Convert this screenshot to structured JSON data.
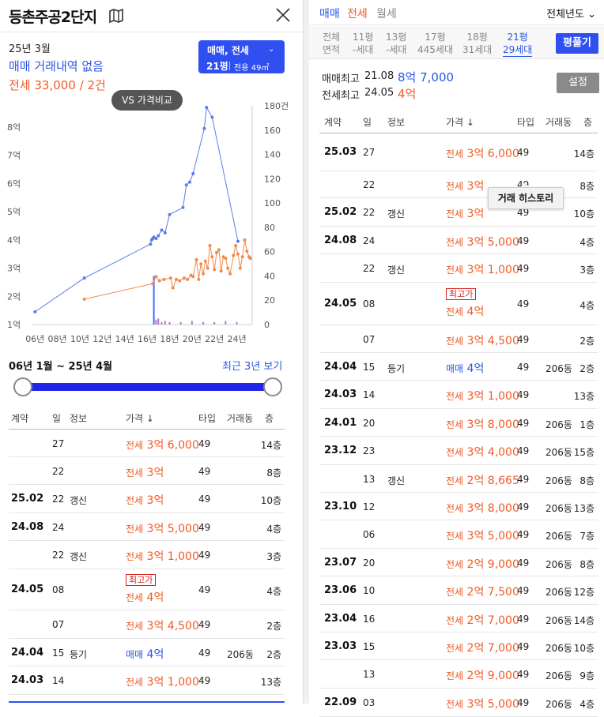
{
  "left": {
    "title": "등촌주공2단지",
    "date": "25년 3월",
    "sale_none": "매매 거래내역 없음",
    "rent_summary": "전세 33,000 / 2건",
    "selector": {
      "type": "매매, 전세",
      "size": "21평",
      "area": "전용 49㎡"
    },
    "vs_button": "VS 가격비교",
    "range_text": "06년 1월 ~ 25년 4월",
    "recent_link": "최근 3년 보기"
  },
  "chart_data": {
    "type": "line",
    "x_tick_labels": [
      "06년",
      "08년",
      "10년",
      "12년",
      "14년",
      "16년",
      "18년",
      "20년",
      "22년",
      "24년"
    ],
    "y_left_tick_labels": [
      "1억",
      "2억",
      "3억",
      "4억",
      "5억",
      "6억",
      "7억",
      "8억"
    ],
    "y_right_tick_labels": [
      "0",
      "20",
      "40",
      "60",
      "80",
      "100",
      "120",
      "140",
      "160",
      "180건"
    ],
    "ylim_left": [
      1,
      8.7
    ],
    "ylim_right": [
      0,
      180
    ],
    "xlim": [
      2005.7,
      2025.3
    ],
    "series": [
      {
        "color": "#5b7bea",
        "points": [
          [
            2006.0,
            1.45
          ],
          [
            2010.4,
            2.65
          ],
          [
            2016.3,
            3.85
          ],
          [
            2016.4,
            4.0
          ],
          [
            2016.5,
            4.05
          ],
          [
            2016.6,
            4.1
          ],
          [
            2016.8,
            4.05
          ],
          [
            2017.0,
            4.15
          ],
          [
            2017.3,
            4.35
          ],
          [
            2017.6,
            4.25
          ],
          [
            2018.0,
            4.9
          ],
          [
            2019.2,
            5.15
          ],
          [
            2019.5,
            5.95
          ],
          [
            2019.8,
            6.05
          ],
          [
            2020.1,
            6.35
          ],
          [
            2021.1,
            7.95
          ],
          [
            2021.3,
            8.7
          ],
          [
            2021.8,
            8.35
          ],
          [
            2024.1,
            3.95
          ]
        ]
      },
      {
        "color": "#f28a4b",
        "points": [
          [
            2010.4,
            1.9
          ],
          [
            2016.5,
            2.45
          ],
          [
            2016.8,
            2.7
          ],
          [
            2017.1,
            2.55
          ],
          [
            2017.5,
            2.6
          ],
          [
            2018.1,
            2.65
          ],
          [
            2018.3,
            2.3
          ],
          [
            2018.6,
            2.6
          ],
          [
            2018.9,
            2.55
          ],
          [
            2019.3,
            2.65
          ],
          [
            2019.6,
            2.6
          ],
          [
            2019.9,
            2.75
          ],
          [
            2020.1,
            2.7
          ],
          [
            2020.4,
            3.3
          ],
          [
            2020.6,
            2.6
          ],
          [
            2020.8,
            3.15
          ],
          [
            2021.0,
            2.8
          ],
          [
            2021.2,
            3.25
          ],
          [
            2021.4,
            3.0
          ],
          [
            2021.6,
            3.8
          ],
          [
            2021.8,
            3.4
          ],
          [
            2022.0,
            2.95
          ],
          [
            2022.2,
            3.55
          ],
          [
            2022.4,
            3.65
          ],
          [
            2022.6,
            2.9
          ],
          [
            2022.8,
            3.4
          ],
          [
            2023.0,
            3.35
          ],
          [
            2023.2,
            3.0
          ],
          [
            2023.4,
            2.8
          ],
          [
            2023.7,
            3.45
          ],
          [
            2023.9,
            3.8
          ],
          [
            2024.1,
            3.5
          ],
          [
            2024.3,
            3.0
          ],
          [
            2024.5,
            3.4
          ],
          [
            2024.7,
            4.0
          ],
          [
            2024.9,
            3.6
          ],
          [
            2025.1,
            3.4
          ],
          [
            2025.2,
            3.35
          ]
        ]
      }
    ],
    "volume": [
      {
        "x": 2016.6,
        "count": 40
      },
      {
        "x": 2016.8,
        "count": 4
      },
      {
        "x": 2017.0,
        "count": 5
      },
      {
        "x": 2017.3,
        "count": 2
      },
      {
        "x": 2017.6,
        "count": 3
      },
      {
        "x": 2018.0,
        "count": 2
      },
      {
        "x": 2019.0,
        "count": 2
      },
      {
        "x": 2020.0,
        "count": 3
      },
      {
        "x": 2021.0,
        "count": 2
      },
      {
        "x": 2022.0,
        "count": 2
      },
      {
        "x": 2023.0,
        "count": 3
      },
      {
        "x": 2024.0,
        "count": 2
      }
    ]
  },
  "left_table": {
    "headers": [
      "계약",
      "일",
      "정보",
      "가격 ↓",
      "타입",
      "거래동",
      "층"
    ],
    "rows": [
      {
        "ym": "",
        "day": "27",
        "info": "",
        "kind": "전세",
        "price": "3억 6,000",
        "type": "49",
        "dong": "",
        "floor": "14층",
        "sale": false,
        "badge": ""
      },
      {
        "ym": "",
        "day": "22",
        "info": "",
        "kind": "전세",
        "price": "3억",
        "type": "49",
        "dong": "",
        "floor": "8층",
        "sale": false,
        "badge": ""
      },
      {
        "ym": "25.02",
        "day": "22",
        "info": "갱신",
        "kind": "전세",
        "price": "3억",
        "type": "49",
        "dong": "",
        "floor": "10층",
        "sale": false,
        "badge": ""
      },
      {
        "ym": "24.08",
        "day": "24",
        "info": "",
        "kind": "전세",
        "price": "3억 5,000",
        "type": "49",
        "dong": "",
        "floor": "4층",
        "sale": false,
        "badge": ""
      },
      {
        "ym": "",
        "day": "22",
        "info": "갱신",
        "kind": "전세",
        "price": "3억 1,000",
        "type": "49",
        "dong": "",
        "floor": "3층",
        "sale": false,
        "badge": ""
      },
      {
        "ym": "24.05",
        "day": "08",
        "info": "",
        "kind": "전세",
        "price": "4억",
        "type": "49",
        "dong": "",
        "floor": "4층",
        "sale": false,
        "badge": "최고가"
      },
      {
        "ym": "",
        "day": "07",
        "info": "",
        "kind": "전세",
        "price": "3억 4,500",
        "type": "49",
        "dong": "",
        "floor": "2층",
        "sale": false,
        "badge": ""
      },
      {
        "ym": "24.04",
        "day": "15",
        "info": "등기",
        "kind": "매매",
        "price": "4억",
        "type": "49",
        "dong": "206동",
        "floor": "2층",
        "sale": true,
        "badge": ""
      },
      {
        "ym": "24.03",
        "day": "14",
        "info": "",
        "kind": "전세",
        "price": "3억 1,000",
        "type": "49",
        "dong": "",
        "floor": "13층",
        "sale": false,
        "badge": ""
      }
    ]
  },
  "right": {
    "tabs": [
      {
        "label": "매매",
        "color": "#2b55e6"
      },
      {
        "label": "전세",
        "color": "#ef5b26"
      },
      {
        "label": "월세",
        "color": "#888888"
      }
    ],
    "year_select": "전체년도",
    "areas": [
      {
        "l1": "전체",
        "l2": "면적",
        "active": false
      },
      {
        "l1": "11평",
        "l2": "-세대",
        "active": false
      },
      {
        "l1": "13평",
        "l2": "-세대",
        "active": false
      },
      {
        "l1": "17평",
        "l2": "445세대",
        "active": false
      },
      {
        "l1": "18평",
        "l2": "31세대",
        "active": false
      },
      {
        "l1": "21평",
        "l2": "29세대",
        "active": true
      }
    ],
    "pyeong_button": "평풀기",
    "sale_max_label": "매매최고",
    "sale_max_date": "21.08",
    "sale_max_price": "8억 7,000",
    "rent_max_label": "전세최고",
    "rent_max_date": "24.05",
    "rent_max_price": "4억",
    "settings_button": "설정",
    "tooltip": "거래 히스토리"
  },
  "right_table": {
    "headers": [
      "계약",
      "일",
      "정보",
      "가격 ↓",
      "타입",
      "거래동",
      "층"
    ],
    "rows": [
      {
        "ym": "25.03",
        "day": "27",
        "info": "",
        "kind": "전세",
        "price": "3억 6,000",
        "type": "49",
        "dong": "",
        "floor": "14층",
        "sale": false,
        "badge": ""
      },
      {
        "ym": "",
        "day": "22",
        "info": "",
        "kind": "전세",
        "price": "3억",
        "type": "49",
        "dong": "",
        "floor": "8층",
        "sale": false,
        "badge": ""
      },
      {
        "ym": "25.02",
        "day": "22",
        "info": "갱신",
        "kind": "전세",
        "price": "3억",
        "type": "49",
        "dong": "",
        "floor": "10층",
        "sale": false,
        "badge": ""
      },
      {
        "ym": "24.08",
        "day": "24",
        "info": "",
        "kind": "전세",
        "price": "3억 5,000",
        "type": "49",
        "dong": "",
        "floor": "4층",
        "sale": false,
        "badge": ""
      },
      {
        "ym": "",
        "day": "22",
        "info": "갱신",
        "kind": "전세",
        "price": "3억 1,000",
        "type": "49",
        "dong": "",
        "floor": "3층",
        "sale": false,
        "badge": ""
      },
      {
        "ym": "24.05",
        "day": "08",
        "info": "",
        "kind": "전세",
        "price": "4억",
        "type": "49",
        "dong": "",
        "floor": "4층",
        "sale": false,
        "badge": "최고가"
      },
      {
        "ym": "",
        "day": "07",
        "info": "",
        "kind": "전세",
        "price": "3억 4,500",
        "type": "49",
        "dong": "",
        "floor": "2층",
        "sale": false,
        "badge": ""
      },
      {
        "ym": "24.04",
        "day": "15",
        "info": "등기",
        "kind": "매매",
        "price": "4억",
        "type": "49",
        "dong": "206동",
        "floor": "2층",
        "sale": true,
        "badge": ""
      },
      {
        "ym": "24.03",
        "day": "14",
        "info": "",
        "kind": "전세",
        "price": "3억 1,000",
        "type": "49",
        "dong": "",
        "floor": "13층",
        "sale": false,
        "badge": ""
      },
      {
        "ym": "24.01",
        "day": "20",
        "info": "",
        "kind": "전세",
        "price": "3억 8,000",
        "type": "49",
        "dong": "206동",
        "floor": "1층",
        "sale": false,
        "badge": ""
      },
      {
        "ym": "23.12",
        "day": "23",
        "info": "",
        "kind": "전세",
        "price": "3억 4,000",
        "type": "49",
        "dong": "206동",
        "floor": "15층",
        "sale": false,
        "badge": ""
      },
      {
        "ym": "",
        "day": "13",
        "info": "갱신",
        "kind": "전세",
        "price": "2억 8,665",
        "type": "49",
        "dong": "206동",
        "floor": "8층",
        "sale": false,
        "badge": ""
      },
      {
        "ym": "23.10",
        "day": "12",
        "info": "",
        "kind": "전세",
        "price": "3억 8,000",
        "type": "49",
        "dong": "206동",
        "floor": "13층",
        "sale": false,
        "badge": ""
      },
      {
        "ym": "",
        "day": "06",
        "info": "",
        "kind": "전세",
        "price": "3억 5,000",
        "type": "49",
        "dong": "206동",
        "floor": "7층",
        "sale": false,
        "badge": ""
      },
      {
        "ym": "23.07",
        "day": "20",
        "info": "",
        "kind": "전세",
        "price": "2억 9,000",
        "type": "49",
        "dong": "206동",
        "floor": "8층",
        "sale": false,
        "badge": ""
      },
      {
        "ym": "23.06",
        "day": "10",
        "info": "",
        "kind": "전세",
        "price": "2억 7,500",
        "type": "49",
        "dong": "206동",
        "floor": "12층",
        "sale": false,
        "badge": ""
      },
      {
        "ym": "23.04",
        "day": "16",
        "info": "",
        "kind": "전세",
        "price": "2억 7,000",
        "type": "49",
        "dong": "206동",
        "floor": "14층",
        "sale": false,
        "badge": ""
      },
      {
        "ym": "23.03",
        "day": "15",
        "info": "",
        "kind": "전세",
        "price": "2억 7,000",
        "type": "49",
        "dong": "206동",
        "floor": "10층",
        "sale": false,
        "badge": ""
      },
      {
        "ym": "",
        "day": "13",
        "info": "",
        "kind": "전세",
        "price": "2억 9,000",
        "type": "49",
        "dong": "206동",
        "floor": "9층",
        "sale": false,
        "badge": ""
      },
      {
        "ym": "22.09",
        "day": "03",
        "info": "",
        "kind": "전세",
        "price": "3억 5,000",
        "type": "49",
        "dong": "206동",
        "floor": "4층",
        "sale": false,
        "badge": ""
      }
    ]
  }
}
